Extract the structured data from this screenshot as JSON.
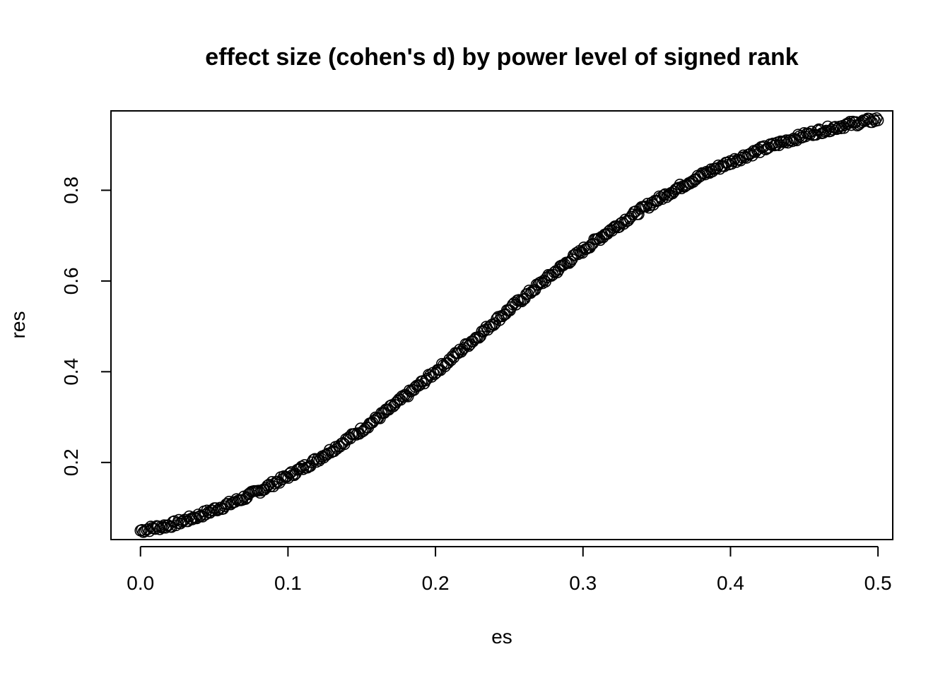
{
  "chart_data": {
    "type": "scatter",
    "title": "effect size (cohen's d) by power level of signed rank",
    "xlabel": "es",
    "ylabel": "res",
    "xlim": [
      -0.02,
      0.51
    ],
    "ylim": [
      0.03,
      0.975
    ],
    "x_ticks": [
      0.0,
      0.1,
      0.2,
      0.3,
      0.4,
      0.5
    ],
    "x_tick_labels": [
      "0.0",
      "0.1",
      "0.2",
      "0.3",
      "0.4",
      "0.5"
    ],
    "y_ticks": [
      0.2,
      0.4,
      0.6,
      0.8
    ],
    "y_tick_labels": [
      "0.2",
      "0.4",
      "0.6",
      "0.8"
    ],
    "grid": false,
    "legend": "none",
    "marker": "open-circle",
    "color": "#000000",
    "series": [
      {
        "x": [
          0.0,
          0.01,
          0.02,
          0.03,
          0.04,
          0.05,
          0.06,
          0.07,
          0.08,
          0.09,
          0.1,
          0.11,
          0.12,
          0.13,
          0.14,
          0.15,
          0.16,
          0.17,
          0.18,
          0.19,
          0.2,
          0.21,
          0.22,
          0.23,
          0.24,
          0.25,
          0.26,
          0.27,
          0.28,
          0.29,
          0.3,
          0.31,
          0.32,
          0.33,
          0.34,
          0.35,
          0.36,
          0.37,
          0.38,
          0.39,
          0.4,
          0.41,
          0.42,
          0.43,
          0.44,
          0.45,
          0.46,
          0.47,
          0.48,
          0.49,
          0.5
        ],
        "y": [
          0.05,
          0.056,
          0.062,
          0.072,
          0.083,
          0.096,
          0.108,
          0.122,
          0.137,
          0.153,
          0.17,
          0.188,
          0.207,
          0.228,
          0.25,
          0.272,
          0.296,
          0.321,
          0.347,
          0.373,
          0.4,
          0.427,
          0.455,
          0.482,
          0.51,
          0.537,
          0.564,
          0.591,
          0.617,
          0.643,
          0.668,
          0.692,
          0.715,
          0.737,
          0.758,
          0.778,
          0.797,
          0.815,
          0.832,
          0.848,
          0.862,
          0.876,
          0.889,
          0.9,
          0.911,
          0.921,
          0.93,
          0.938,
          0.945,
          0.951,
          0.956
        ]
      }
    ]
  }
}
